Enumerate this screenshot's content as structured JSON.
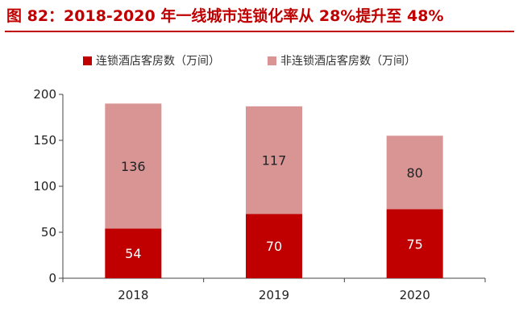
{
  "header": {
    "title": "图 82：2018-2020 年一线城市连锁化率从 28%提升至 48%"
  },
  "chart_data": {
    "type": "bar",
    "stacked": true,
    "categories": [
      "2018",
      "2019",
      "2020"
    ],
    "series": [
      {
        "name": "连锁酒店客房数（万间）",
        "values": [
          54,
          70,
          75
        ],
        "color": "#c00000"
      },
      {
        "name": "非连锁酒店客房数（万间）",
        "values": [
          136,
          117,
          80
        ],
        "color": "#d99594"
      }
    ],
    "ylim": [
      0,
      200
    ],
    "yticks": [
      0,
      50,
      100,
      150,
      200
    ],
    "grid": false,
    "legend": "top-center",
    "xlabel": "",
    "ylabel": ""
  }
}
